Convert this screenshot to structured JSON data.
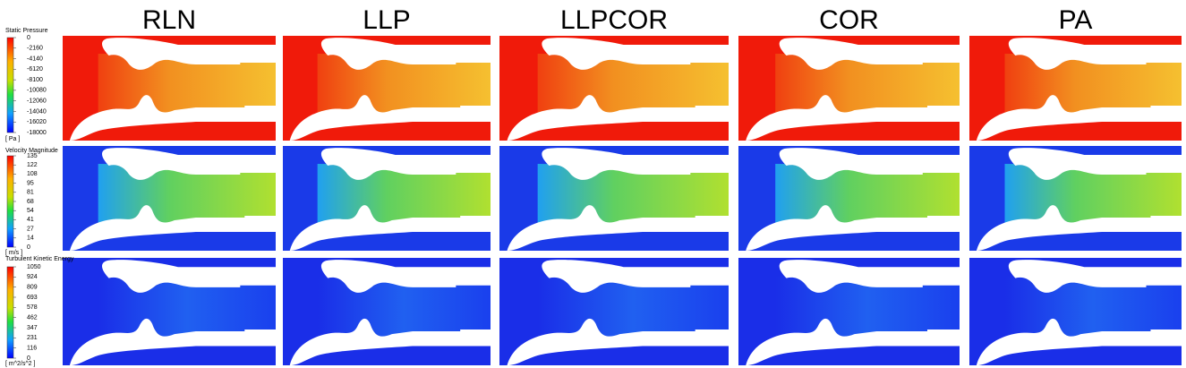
{
  "columns": [
    "RLN",
    "LLP",
    "LLPCOR",
    "COR",
    "PA"
  ],
  "legends": [
    {
      "title": "Static Pressure",
      "ticks": [
        "0",
        "-2160",
        "-4140",
        "-6120",
        "-8100",
        "-10080",
        "-12060",
        "-14040",
        "-16020",
        "-18000"
      ],
      "unit": "[ Pa ]"
    },
    {
      "title": "Velocity Magnitude",
      "ticks": [
        "135",
        "122",
        "108",
        "95",
        "81",
        "68",
        "54",
        "41",
        "27",
        "14",
        "0"
      ],
      "unit": "[ m/s ]"
    },
    {
      "title": "Turbulent Kinetic Energy",
      "ticks": [
        "1050",
        "924",
        "809",
        "693",
        "578",
        "462",
        "347",
        "231",
        "116",
        "0"
      ],
      "unit": "[ m^2/s^2 ]"
    }
  ]
}
